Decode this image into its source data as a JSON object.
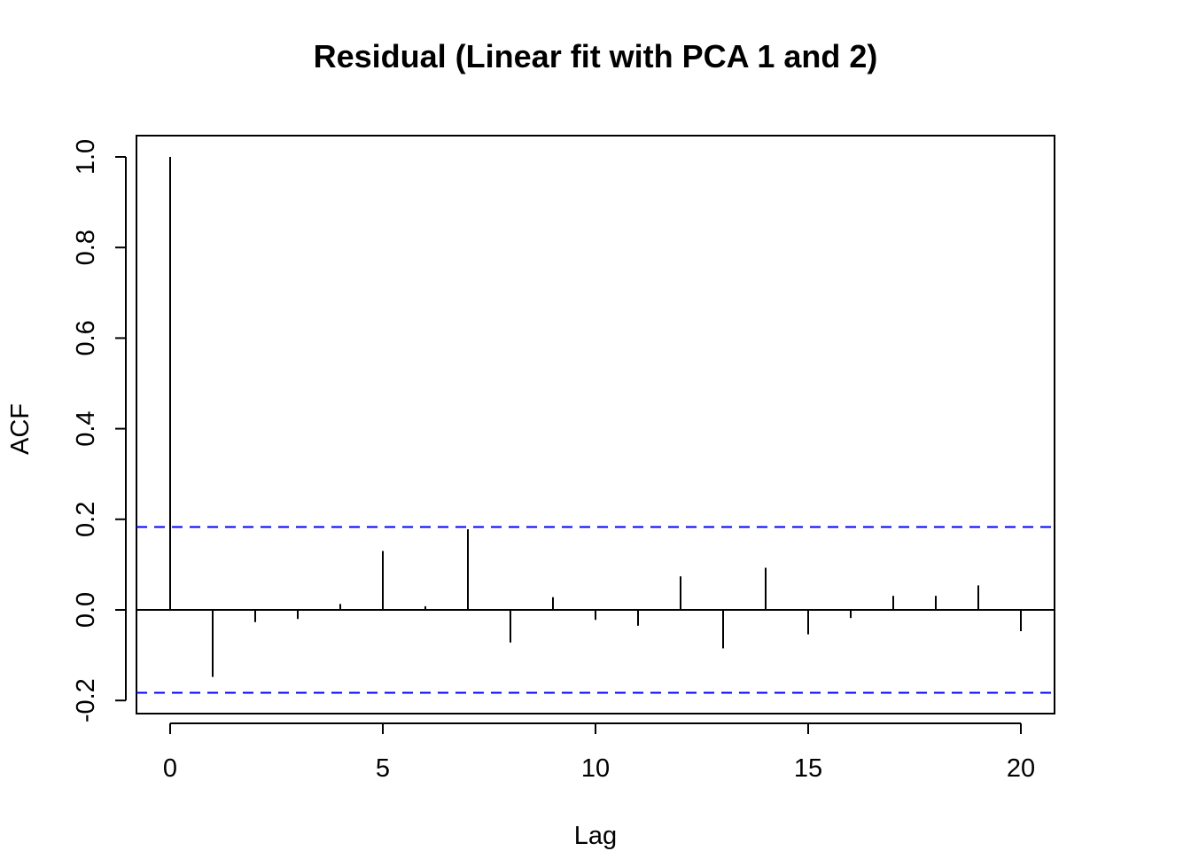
{
  "chart_data": {
    "type": "bar",
    "title": "Residual (Linear fit with PCA 1 and 2)",
    "xlabel": "Lag",
    "ylabel": "ACF",
    "x": [
      0,
      1,
      2,
      3,
      4,
      5,
      6,
      7,
      8,
      9,
      10,
      11,
      12,
      13,
      14,
      15,
      16,
      17,
      18,
      19,
      20
    ],
    "values": [
      1.0,
      -0.148,
      -0.027,
      -0.02,
      0.013,
      0.13,
      0.008,
      0.178,
      -0.072,
      0.028,
      -0.022,
      -0.035,
      0.074,
      -0.085,
      0.093,
      -0.054,
      -0.018,
      0.031,
      0.031,
      0.054,
      -0.047
    ],
    "confidence_bounds": [
      0.183,
      -0.183
    ],
    "confidence_color": "#0000ff",
    "x_ticks": [
      0,
      5,
      10,
      15,
      20
    ],
    "x_tick_labels": [
      "0",
      "5",
      "10",
      "15",
      "20"
    ],
    "y_ticks": [
      -0.2,
      0.0,
      0.2,
      0.4,
      0.6,
      0.8,
      1.0
    ],
    "y_tick_labels": [
      "-0.2",
      "0.0",
      "0.2",
      "0.4",
      "0.6",
      "0.8",
      "1.0"
    ],
    "xlim": [
      -0.8,
      20.8
    ],
    "ylim": [
      -0.23,
      1.05
    ],
    "grid": false,
    "legend": "none"
  }
}
